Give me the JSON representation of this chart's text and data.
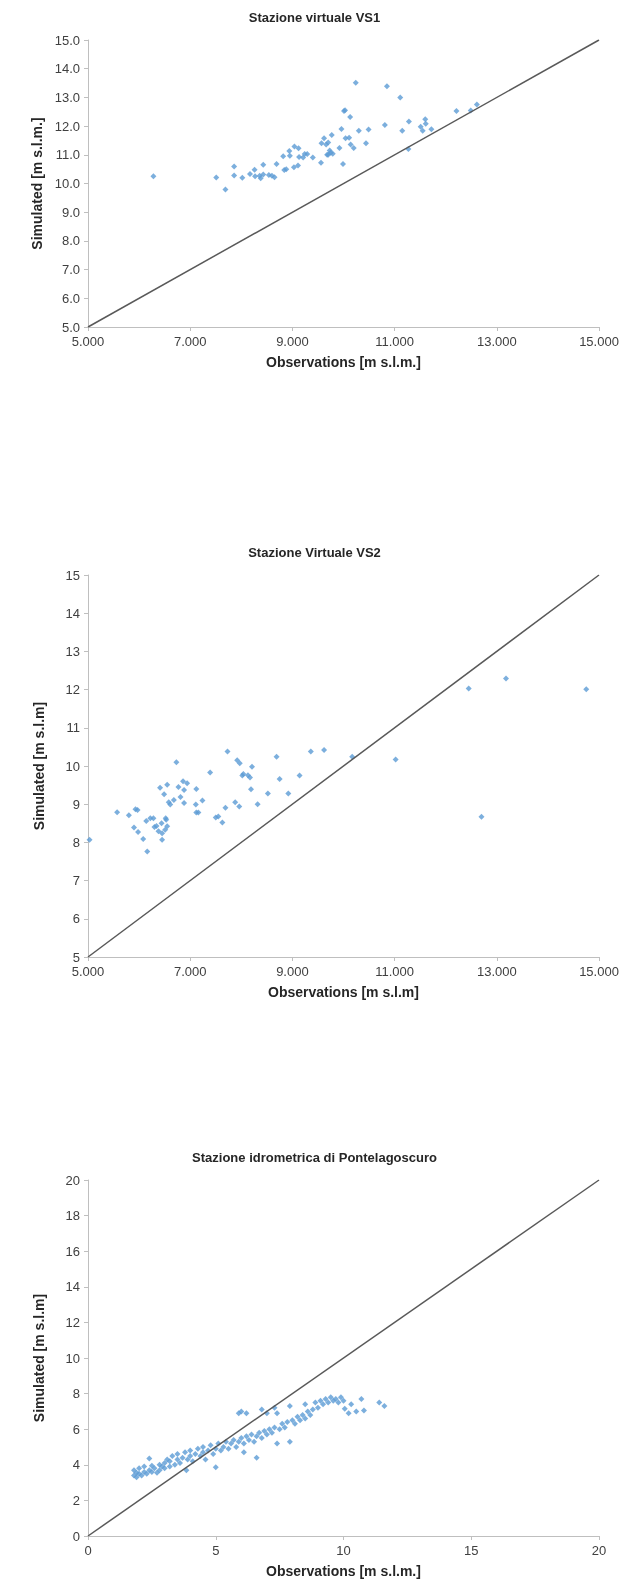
{
  "chart_data": [
    {
      "type": "scatter",
      "title": "Stazione virtuale VS1",
      "xlabel": "Observations [m s.l.m.]",
      "ylabel": "Simulated [m s.l.m.]",
      "xlim": [
        5,
        15
      ],
      "ylim": [
        5,
        15
      ],
      "xticks": [
        {
          "value": 5,
          "label": "5.000"
        },
        {
          "value": 7,
          "label": "7.000"
        },
        {
          "value": 9,
          "label": "9.000"
        },
        {
          "value": 11,
          "label": "11.000"
        },
        {
          "value": 13,
          "label": "13.000"
        },
        {
          "value": 15,
          "label": "15.000"
        }
      ],
      "yticks": [
        {
          "value": 5,
          "label": "5.0"
        },
        {
          "value": 6,
          "label": "6.0"
        },
        {
          "value": 7,
          "label": "7.0"
        },
        {
          "value": 8,
          "label": "8.0"
        },
        {
          "value": 9,
          "label": "9.0"
        },
        {
          "value": 10,
          "label": "10.0"
        },
        {
          "value": 11,
          "label": "11.0"
        },
        {
          "value": 12,
          "label": "12.0"
        },
        {
          "value": 13,
          "label": "13.0"
        },
        {
          "value": 14,
          "label": "14.0"
        },
        {
          "value": 15,
          "label": "15.0"
        }
      ],
      "grid": false,
      "series": [
        {
          "type": "scatter",
          "color": "#5b9bd5",
          "marker": "diamond",
          "x": [
            6.28,
            7.51,
            7.69,
            7.86,
            7.86,
            8.02,
            8.17,
            8.26,
            8.27,
            8.36,
            8.38,
            8.43,
            8.43,
            8.54,
            8.6,
            8.65,
            8.69,
            8.82,
            8.84,
            8.88,
            8.94,
            8.95,
            9.03,
            9.04,
            9.11,
            9.12,
            9.13,
            9.21,
            9.24,
            9.29,
            9.4,
            9.56,
            9.57,
            9.62,
            9.66,
            9.7,
            9.77,
            9.68,
            9.7,
            9.73,
            9.75,
            9.79,
            9.92,
            9.96,
            9.99,
            10.01,
            10.03,
            10.04,
            10.11,
            10.13,
            10.14,
            10.2,
            10.24,
            10.3,
            10.44,
            10.49,
            10.81,
            10.85,
            11.11,
            11.15,
            11.27,
            11.28,
            11.51,
            11.55,
            11.6,
            11.61,
            11.72,
            12.21,
            12.49,
            12.61
          ],
          "values": [
            10.25,
            10.21,
            9.79,
            10.59,
            10.28,
            10.2,
            10.33,
            10.48,
            10.25,
            10.27,
            10.18,
            10.31,
            10.65,
            10.3,
            10.27,
            10.22,
            10.68,
            10.95,
            10.47,
            10.5,
            11.13,
            10.97,
            10.57,
            11.29,
            10.63,
            11.23,
            10.92,
            10.91,
            11.03,
            11.03,
            10.91,
            10.72,
            11.4,
            11.58,
            11.36,
            11.43,
            11.69,
            11,
            11,
            11.15,
            11.07,
            11.04,
            11.24,
            11.9,
            10.68,
            12.53,
            12.55,
            11.58,
            11.59,
            12.32,
            11.36,
            11.24,
            13.51,
            11.84,
            11.4,
            11.88,
            12.04,
            13.39,
            13,
            11.84,
            11.2,
            12.16,
            11.98,
            11.84,
            12.24,
            12.08,
            11.89,
            12.53,
            12.54,
            12.75
          ]
        },
        {
          "type": "line",
          "color": "#595959",
          "line_style": "solid",
          "marker": "none",
          "x": [
            5,
            15
          ],
          "values": [
            5,
            15
          ]
        }
      ]
    },
    {
      "type": "scatter",
      "title": "Stazione Virtuale VS2",
      "xlabel": "Observations [m s.l.m]",
      "ylabel": "Simulated [m s.l.m]",
      "xlim": [
        5,
        15
      ],
      "ylim": [
        5,
        15
      ],
      "xticks": [
        {
          "value": 5,
          "label": "5.000"
        },
        {
          "value": 7,
          "label": "7.000"
        },
        {
          "value": 9,
          "label": "9.000"
        },
        {
          "value": 11,
          "label": "11.000"
        },
        {
          "value": 13,
          "label": "13.000"
        },
        {
          "value": 15,
          "label": "15.000"
        }
      ],
      "yticks": [
        5,
        6,
        7,
        8,
        9,
        10,
        11,
        12,
        13,
        14,
        15
      ],
      "grid": false,
      "series": [
        {
          "type": "scatter",
          "color": "#5b9bd5",
          "marker": "diamond",
          "x": [
            5.03,
            5.57,
            5.8,
            5.9,
            5.93,
            5.97,
            5.98,
            6.08,
            6.14,
            6.16,
            6.22,
            6.28,
            6.3,
            6.34,
            6.38,
            6.41,
            6.44,
            6.45,
            6.45,
            6.49,
            6.51,
            6.52,
            6.53,
            6.55,
            6.55,
            6.58,
            6.61,
            6.68,
            6.73,
            6.77,
            6.81,
            6.86,
            6.88,
            6.88,
            6.94,
            7.11,
            7.12,
            7.12,
            7.16,
            7.24,
            7.39,
            7.5,
            7.55,
            7.63,
            7.69,
            7.73,
            7.88,
            7.92,
            7.97,
            7.96,
            8.02,
            8.04,
            8.13,
            8.17,
            8.19,
            8.21,
            8.32,
            8.52,
            8.69,
            8.75,
            8.92,
            9.14,
            9.36,
            9.62,
            10.17,
            11.02,
            12.45,
            12.7,
            13.18,
            14.75
          ],
          "values": [
            8.07,
            8.79,
            8.71,
            8.39,
            8.87,
            8.85,
            8.27,
            8.09,
            8.56,
            7.76,
            8.63,
            8.63,
            8.4,
            8.43,
            8.29,
            9.43,
            8.5,
            8.07,
            8.24,
            9.26,
            8.33,
            8.63,
            8.59,
            9.51,
            8.42,
            9.05,
            8.99,
            9.11,
            10.1,
            9.45,
            9.19,
            9.6,
            9.37,
            9.03,
            9.55,
            8.99,
            9.4,
            8.78,
            8.78,
            9.1,
            9.83,
            8.65,
            8.68,
            8.52,
            8.91,
            10.38,
            9.05,
            10.15,
            10.07,
            8.94,
            9.75,
            9.79,
            9.76,
            9.7,
            9.39,
            9.98,
            9,
            9.28,
            10.24,
            9.66,
            9.28,
            9.75,
            10.38,
            10.42,
            10.24,
            10.17,
            12.03,
            8.67,
            12.29,
            12.01
          ]
        },
        {
          "type": "line",
          "color": "#595959",
          "line_style": "solid",
          "marker": "none",
          "x": [
            5,
            15
          ],
          "values": [
            5,
            15
          ]
        }
      ]
    },
    {
      "type": "scatter",
      "title": "Stazione idrometrica di Pontelagoscuro",
      "xlabel": "Observations [m s.l.m.]",
      "ylabel": "Simulated [m s.l.m]",
      "xlim": [
        0,
        20
      ],
      "ylim": [
        0,
        20
      ],
      "xticks": [
        0,
        5,
        10,
        15,
        20
      ],
      "yticks": [
        0,
        2,
        4,
        6,
        8,
        10,
        12,
        14,
        16,
        18,
        20
      ],
      "grid": false,
      "series": [
        {
          "type": "scatter",
          "color": "#5b9bd5",
          "marker": "diamond",
          "x": [
            1.8,
            1.8,
            1.9,
            1.9,
            2.0,
            2.0,
            2.1,
            2.2,
            2.2,
            2.3,
            2.4,
            2.4,
            2.5,
            2.5,
            2.6,
            2.7,
            2.8,
            2.8,
            2.9,
            3.0,
            3.0,
            3.1,
            3.2,
            3.2,
            3.3,
            3.4,
            3.5,
            3.5,
            3.6,
            3.7,
            3.8,
            3.85,
            3.9,
            4.0,
            4.0,
            4.1,
            4.2,
            4.3,
            4.4,
            4.5,
            4.5,
            4.6,
            4.7,
            4.8,
            4.9,
            5.0,
            5.0,
            5.1,
            5.2,
            5.3,
            5.4,
            5.5,
            5.6,
            5.7,
            5.8,
            5.9,
            5.9,
            6.0,
            6.0,
            6.1,
            6.1,
            6.2,
            6.2,
            6.3,
            6.4,
            6.5,
            6.6,
            6.6,
            6.7,
            6.8,
            6.8,
            6.9,
            7.0,
            7.0,
            7.1,
            7.2,
            7.3,
            7.3,
            7.4,
            7.4,
            7.5,
            7.6,
            7.7,
            7.8,
            7.9,
            7.9,
            8.0,
            8.1,
            8.2,
            8.3,
            8.4,
            8.5,
            8.5,
            8.6,
            8.7,
            8.8,
            8.9,
            9.0,
            9.1,
            9.2,
            9.3,
            9.4,
            9.5,
            9.6,
            9.7,
            9.8,
            9.9,
            10.0,
            10.05,
            10.2,
            10.3,
            10.5,
            10.7,
            10.8,
            11.4,
            11.6
          ],
          "values": [
            3.4,
            3.7,
            3.3,
            3.55,
            3.5,
            3.8,
            3.4,
            3.6,
            3.9,
            3.5,
            4.35,
            3.7,
            3.6,
            3.95,
            3.8,
            3.55,
            4.0,
            3.7,
            3.9,
            4.1,
            3.8,
            4.3,
            3.9,
            4.2,
            4.5,
            4.0,
            4.3,
            4.6,
            4.1,
            4.4,
            4.7,
            3.7,
            4.3,
            4.5,
            4.8,
            4.2,
            4.6,
            4.9,
            4.5,
            4.7,
            5.0,
            4.3,
            4.8,
            5.1,
            4.6,
            3.86,
            4.9,
            5.2,
            4.8,
            5.0,
            5.3,
            4.9,
            5.2,
            5.4,
            5.0,
            5.3,
            6.9,
            5.5,
            7.0,
            4.7,
            5.2,
            6.9,
            5.6,
            5.4,
            5.7,
            5.3,
            4.4,
            5.6,
            5.8,
            7.1,
            5.5,
            5.9,
            5.7,
            6.9,
            6.0,
            5.8,
            7.2,
            6.1,
            5.2,
            6.9,
            6.0,
            6.3,
            6.1,
            6.4,
            5.3,
            7.3,
            6.5,
            6.3,
            6.7,
            6.5,
            6.8,
            6.6,
            7.4,
            7.0,
            6.8,
            7.1,
            7.5,
            7.2,
            7.6,
            7.4,
            7.7,
            7.5,
            7.8,
            7.6,
            7.7,
            7.5,
            7.8,
            7.6,
            7.15,
            6.9,
            7.4,
            7.0,
            7.7,
            7.05,
            7.5,
            7.3
          ]
        },
        {
          "type": "line",
          "color": "#595959",
          "line_style": "solid",
          "marker": "none",
          "x": [
            0,
            20
          ],
          "values": [
            0,
            20
          ]
        }
      ]
    }
  ]
}
